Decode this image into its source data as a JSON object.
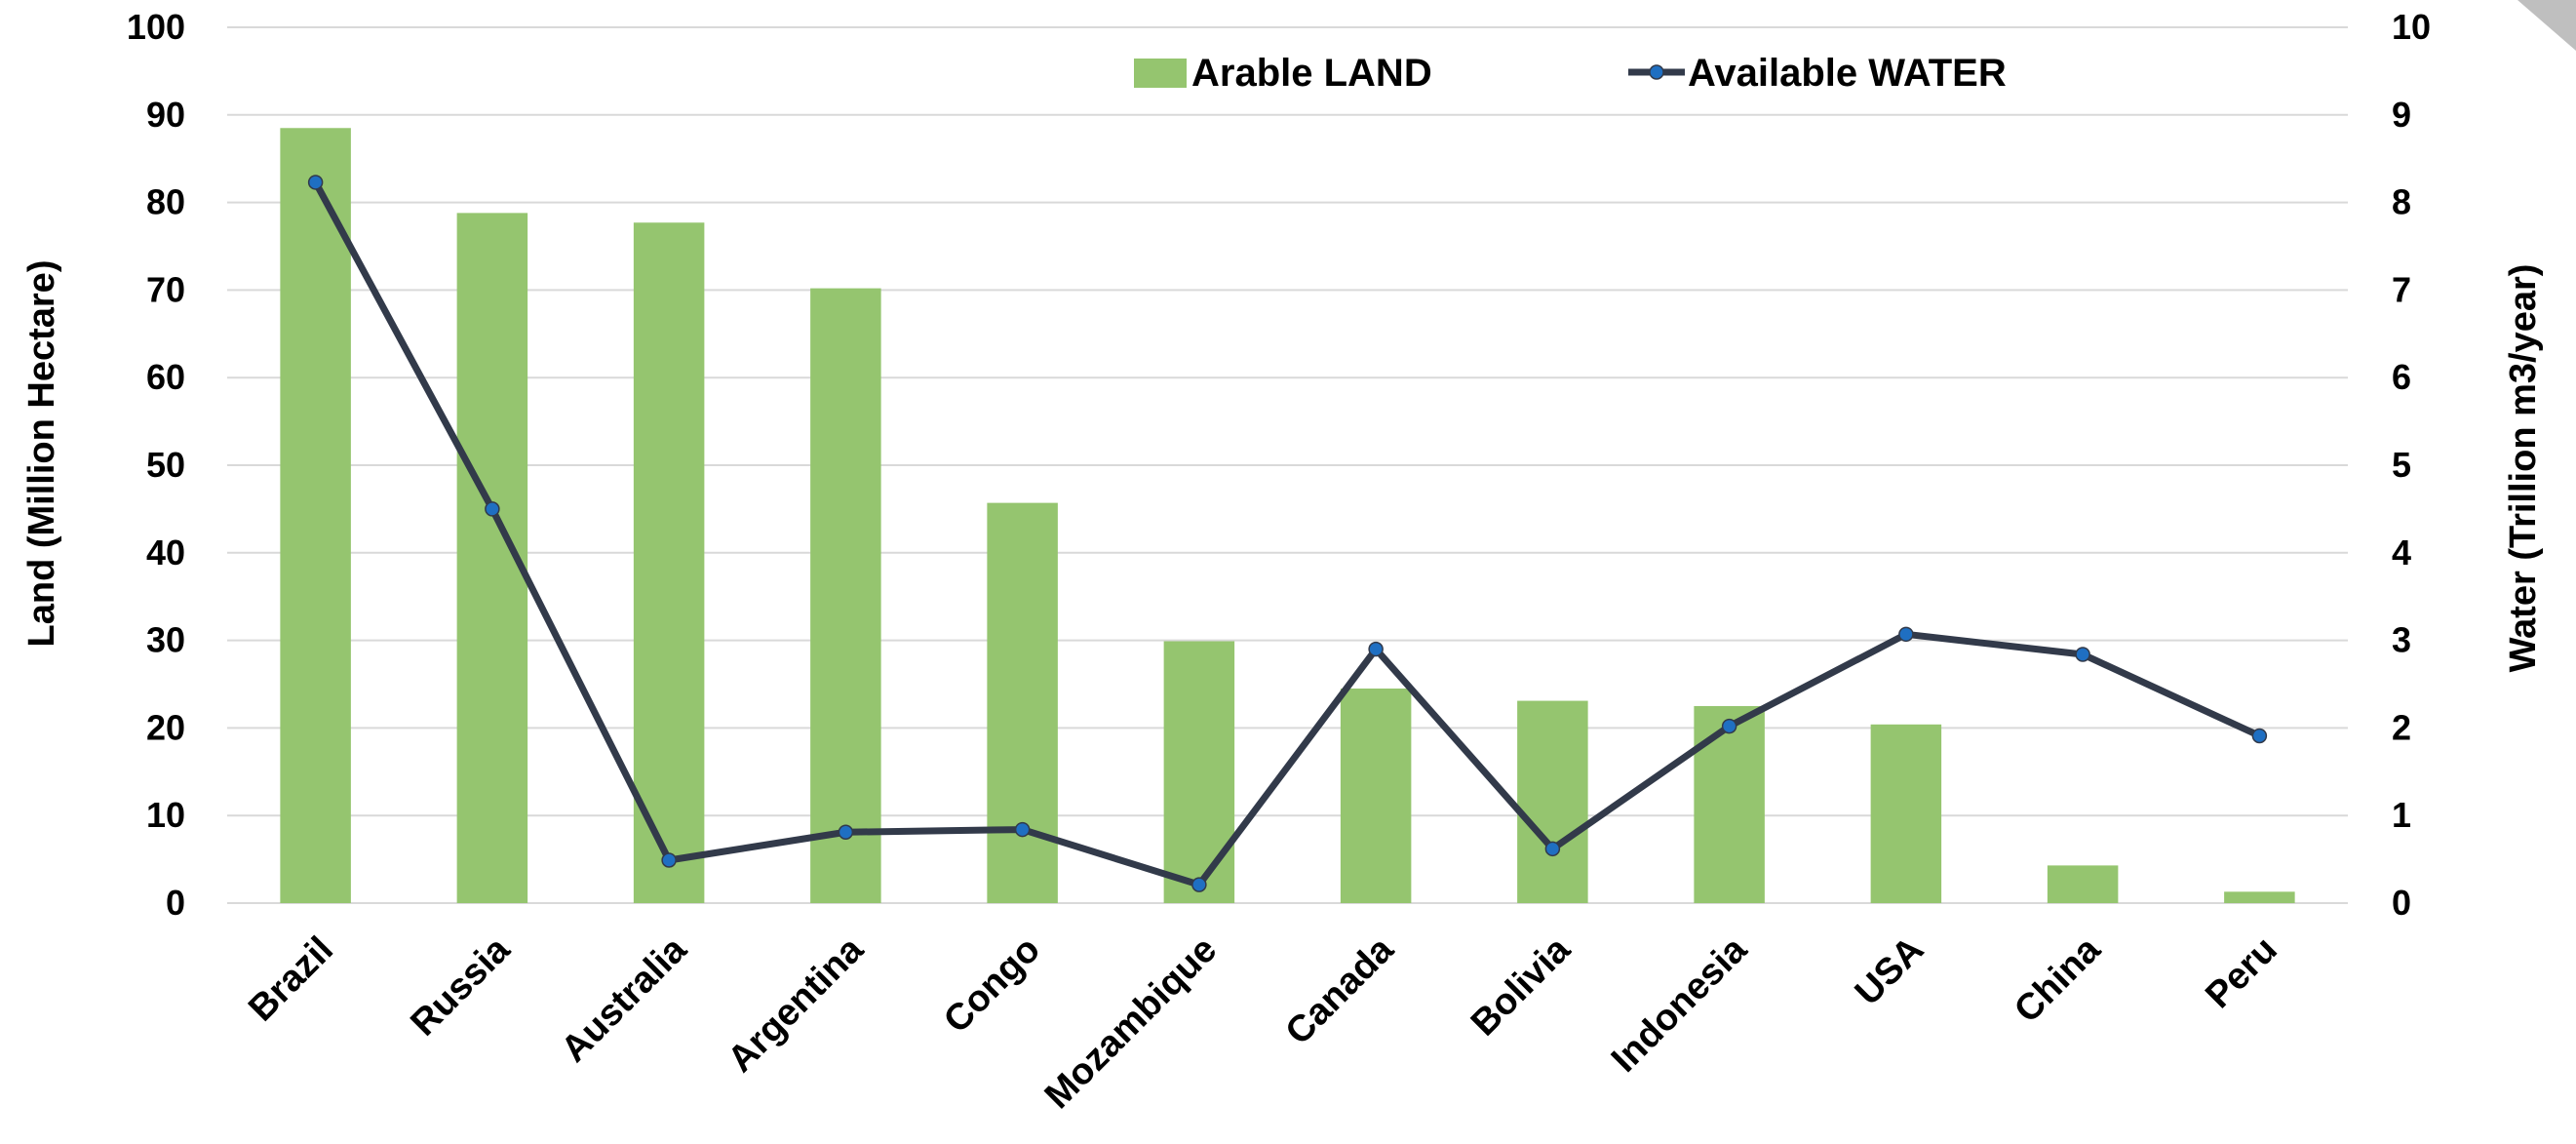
{
  "chart_data": {
    "type": "bar",
    "categories": [
      "Brazil",
      "Russia",
      "Australia",
      "Argentina",
      "Congo",
      "Mozambique",
      "Canada",
      "Bolivia",
      "Indonesia",
      "USA",
      "China",
      "Peru"
    ],
    "series": [
      {
        "name": "Arable LAND",
        "type": "bar",
        "axis": "left",
        "color": "#95c56f",
        "values": [
          88.5,
          78.8,
          77.7,
          70.2,
          45.7,
          29.9,
          24.5,
          23.1,
          22.5,
          20.4,
          4.3,
          1.3
        ]
      },
      {
        "name": "Available WATER",
        "type": "line",
        "axis": "right",
        "line_color": "#323a4a",
        "marker_color": "#1f6fc2",
        "values": [
          8.23,
          4.5,
          0.49,
          0.81,
          0.84,
          0.21,
          2.9,
          0.62,
          2.02,
          3.07,
          2.84,
          1.91
        ]
      }
    ],
    "ylabel": "Land (Million Hectare)",
    "ylim": [
      0,
      100
    ],
    "yticks": [
      0,
      10,
      20,
      30,
      40,
      50,
      60,
      70,
      80,
      90,
      100
    ],
    "y2label": "Water (Trillion m3/year)",
    "y2lim": [
      0,
      10
    ],
    "y2ticks": [
      0,
      1,
      2,
      3,
      4,
      5,
      6,
      7,
      8,
      9,
      10
    ],
    "grid": "horizontal",
    "legend_position": "top-center",
    "gridline_color": "#d9d9d9"
  }
}
